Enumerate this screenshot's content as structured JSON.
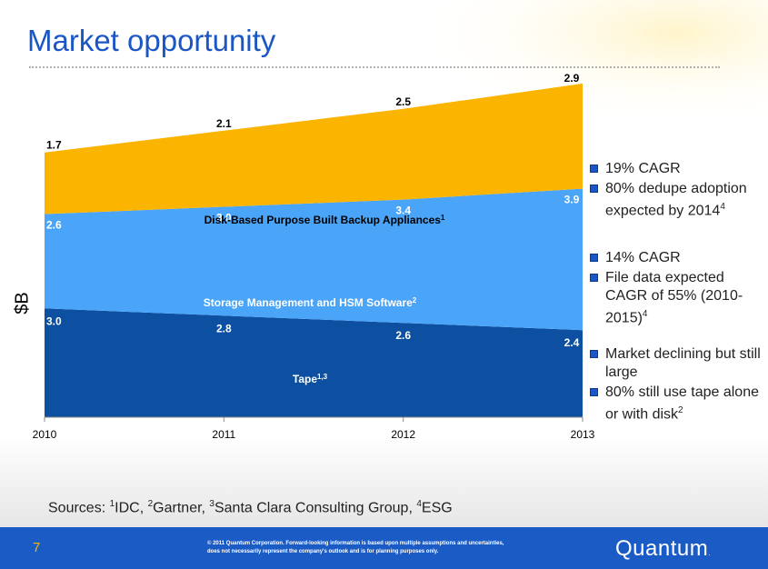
{
  "title": "Market opportunity",
  "ylabel": "$B",
  "chart_data": {
    "type": "area",
    "stacked": true,
    "x": [
      "2010",
      "2011",
      "2012",
      "2013"
    ],
    "ylim": [
      0,
      10.5
    ],
    "series": [
      {
        "name": "Tape",
        "sup": "1,3",
        "values": [
          3.0,
          2.8,
          2.6,
          2.4
        ],
        "color": "#0d4fa0",
        "labelColor": "#ffffff",
        "dataLabels": [
          "3.0",
          "2.8",
          "2.6",
          "2.4"
        ]
      },
      {
        "name": "Storage Management and HSM Software",
        "sup": "2",
        "values": [
          2.6,
          3.0,
          3.4,
          3.9
        ],
        "color": "#4aa4f8",
        "labelColor": "#ffffff",
        "dataLabels": [
          "2.6",
          "3.0",
          "3.4",
          "3.9"
        ]
      },
      {
        "name": "Disk-Based  Purpose Built Backup Appliances",
        "sup": "1",
        "values": [
          1.7,
          2.1,
          2.5,
          2.9
        ],
        "color": "#fbb400",
        "labelColor": "#000000",
        "dataLabels": [
          "1.7",
          "2.1",
          "2.5",
          "2.9"
        ]
      }
    ]
  },
  "bullet_groups": [
    {
      "items": [
        {
          "text": "19% CAGR",
          "sup": ""
        },
        {
          "text": "80% dedupe adoption expected by 2014",
          "sup": "4"
        }
      ]
    },
    {
      "items": [
        {
          "text": "14% CAGR",
          "sup": ""
        },
        {
          "text": "File data expected CAGR of 55% (2010-2015)",
          "sup": "4"
        }
      ]
    },
    {
      "items": [
        {
          "text": "Market declining but still large",
          "sup": ""
        },
        {
          "text": "80% still use tape alone or with disk",
          "sup": "2"
        }
      ]
    }
  ],
  "sources": {
    "prefix": "Sources: ",
    "s1_sup": "1",
    "s1": "IDC, ",
    "s2_sup": "2",
    "s2": "Gartner, ",
    "s3_sup": "3",
    "s3": "Santa Clara Consulting Group, ",
    "s4_sup": "4",
    "s4": "ESG"
  },
  "footer": {
    "page_number": "7",
    "legal": "© 2011 Quantum Corporation. Forward-looking information is based upon multiple assumptions and uncertainties, does not necessarily represent the company's outlook and is for planning purposes only.",
    "logo": "Quantum",
    "logo_dot": "."
  }
}
